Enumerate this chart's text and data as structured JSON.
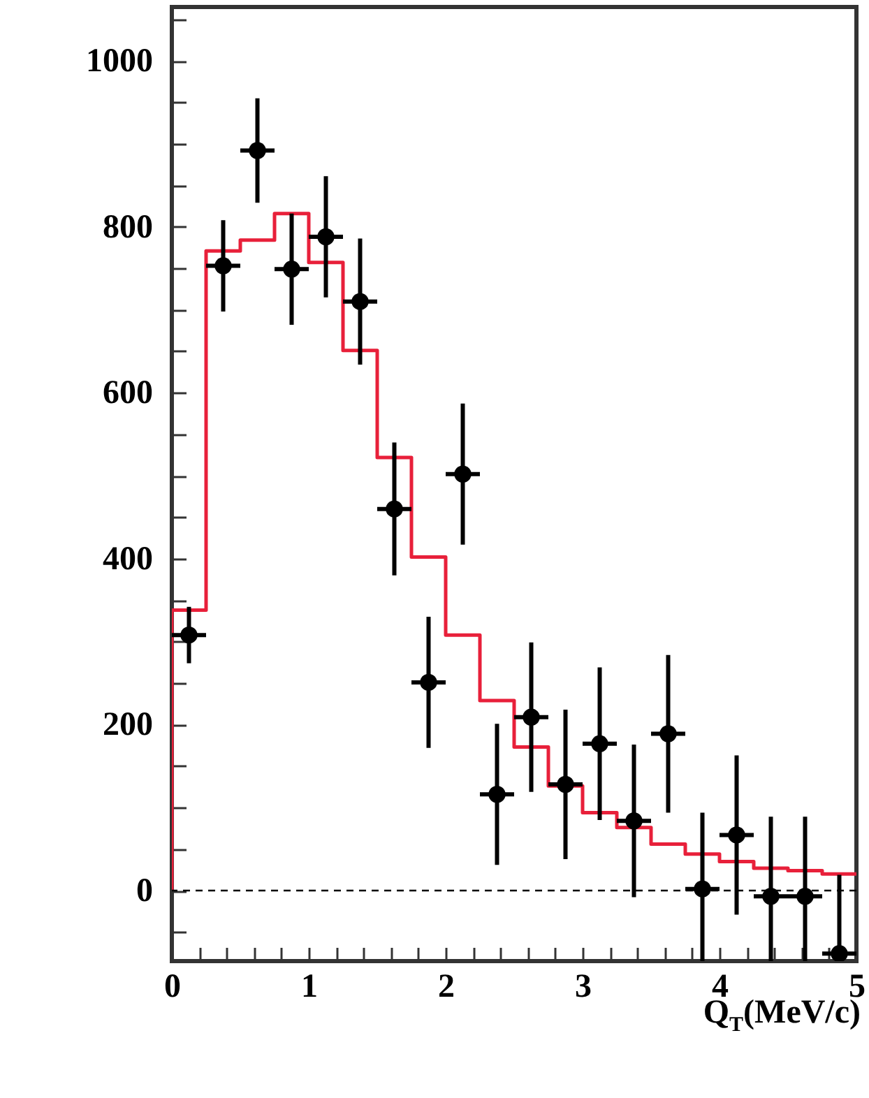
{
  "chart_data": {
    "type": "scatter",
    "xlabel": "Q$_{T}$(MeV/c)",
    "xlim": [
      0,
      5
    ],
    "ylim": [
      -85,
      1065
    ],
    "xticks": [
      0,
      {
        "value": 0.2,
        "label": null
      },
      {
        "value": 0.4,
        "label": null
      },
      {
        "value": 0.6,
        "label": null
      },
      {
        "value": 0.8,
        "label": null
      },
      1,
      {
        "value": 1.2,
        "label": null
      },
      {
        "value": 1.4,
        "label": null
      },
      {
        "value": 1.6,
        "label": null
      },
      {
        "value": 1.8,
        "label": null
      },
      2,
      {
        "value": 2.2,
        "label": null
      },
      {
        "value": 2.4,
        "label": null
      },
      {
        "value": 2.6,
        "label": null
      },
      {
        "value": 2.8,
        "label": null
      },
      3,
      {
        "value": 3.2,
        "label": null
      },
      {
        "value": 3.4,
        "label": null
      },
      {
        "value": 3.6,
        "label": null
      },
      {
        "value": 3.8,
        "label": null
      },
      4,
      {
        "value": 4.2,
        "label": null
      },
      {
        "value": 4.4,
        "label": null
      },
      {
        "value": 4.6,
        "label": null
      },
      {
        "value": 4.8,
        "label": null
      },
      5
    ],
    "yticks": [
      {
        "value": -50,
        "label": null
      },
      0,
      {
        "value": 50,
        "label": null
      },
      {
        "value": 100,
        "label": null
      },
      {
        "value": 150,
        "label": null
      },
      200,
      {
        "value": 250,
        "label": null
      },
      {
        "value": 300,
        "label": null
      },
      {
        "value": 350,
        "label": null
      },
      400,
      {
        "value": 450,
        "label": null
      },
      {
        "value": 500,
        "label": null
      },
      {
        "value": 550,
        "label": null
      },
      600,
      {
        "value": 650,
        "label": null
      },
      {
        "value": 700,
        "label": null
      },
      {
        "value": 750,
        "label": null
      },
      800,
      {
        "value": 850,
        "label": null
      },
      {
        "value": 900,
        "label": null
      },
      {
        "value": 950,
        "label": null
      },
      1000,
      {
        "value": 1050,
        "label": null
      }
    ],
    "marker": "circle",
    "ref_lines": [
      {
        "axis": "y",
        "value": 0,
        "line_style": "dashed",
        "color": "#000000"
      }
    ],
    "series": [
      {
        "type": "histogram",
        "color": "#e8203a",
        "bins": [
          0,
          0.25,
          0.5,
          0.75,
          1,
          1.25,
          1.5,
          1.75,
          2,
          2.25,
          2.5,
          2.75,
          3,
          3.25,
          3.5,
          3.75,
          4,
          4.25,
          4.5,
          4.75,
          5
        ],
        "values": [
          338,
          771,
          784,
          816,
          757,
          651,
          522,
          402,
          308,
          229,
          173,
          126,
          94,
          76,
          56,
          44,
          35,
          27,
          24,
          20
        ]
      },
      {
        "color": "#000000",
        "x": [
          0.125,
          0.375,
          0.625,
          0.875,
          1.125,
          1.375,
          1.625,
          1.875,
          2.125,
          2.375,
          2.625,
          2.875,
          3.125,
          3.375,
          3.625,
          3.875,
          4.125,
          4.375,
          4.625,
          4.875
        ],
        "values": [
          308,
          753,
          892,
          749,
          788,
          710,
          460,
          251,
          502,
          116,
          209,
          128,
          177,
          84,
          189,
          2,
          67,
          -7,
          -7,
          -76
        ],
        "errors": [
          34,
          55,
          63,
          67,
          73,
          76,
          80,
          79,
          85,
          85,
          90,
          90,
          92,
          92,
          95,
          [
            -85,
            94
          ],
          96,
          [
            -85,
            89
          ],
          [
            -85,
            89
          ],
          [
            -85,
            19
          ]
        ],
        "xerrors": [
          0.125,
          0.125,
          0.125,
          0.125,
          0.125,
          0.125,
          0.125,
          0.125,
          0.125,
          0.125,
          0.125,
          0.125,
          0.125,
          0.125,
          0.125,
          0.125,
          0.125,
          0.125,
          0.125,
          0.125
        ]
      }
    ]
  }
}
